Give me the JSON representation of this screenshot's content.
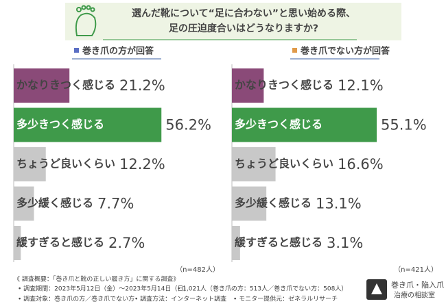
{
  "title_lines": [
    "選んだ靴について“足に合わない”と思い始める際、",
    "足の圧迫度合いはどうなりますか?"
  ],
  "chart_data": [
    {
      "type": "bar",
      "title": "巻き爪の方が回答",
      "marker_color": "#5b6fc4",
      "categories": [
        "かなりきつく感じる",
        "多少きつく感じる",
        "ちょうど良いくらい",
        "多少緩く感じる",
        "緩すぎると感じる"
      ],
      "values": [
        21.2,
        56.2,
        12.2,
        7.7,
        2.7
      ],
      "value_labels": [
        "21.2%",
        "56.2%",
        "12.2%",
        "7.7%",
        "2.7%"
      ],
      "colors": [
        "#8a4a78",
        "#3f9a4a",
        "#c8c8c8",
        "#c8c8c8",
        "#c8c8c8"
      ],
      "note": "（n=482人）"
    },
    {
      "type": "bar",
      "title": "巻き爪でない方が回答",
      "marker_color": "#e09a4a",
      "categories": [
        "かなりきつく感じる",
        "多少きつく感じる",
        "ちょうど良いくらい",
        "多少緩く感じる",
        "緩すぎると感じる"
      ],
      "values": [
        12.1,
        55.1,
        16.6,
        13.1,
        3.1
      ],
      "value_labels": [
        "12.1%",
        "55.1%",
        "16.6%",
        "13.1%",
        "3.1%"
      ],
      "colors": [
        "#8a4a78",
        "#3f9a4a",
        "#c8c8c8",
        "#c8c8c8",
        "#c8c8c8"
      ],
      "note": "（n=421人）"
    }
  ],
  "footer": {
    "heading": "《 調査概要：「巻き爪と靴の正しい履き方」に関する調査》",
    "items": [
      "• 調査期間：2023年5月12日（金）～2023年5月14日（日）",
      "• 1,021人（巻き爪の方：513人／巻き爪でない方：508人）",
      "• 調査対象：巻き爪の方／巻き爪でない方",
      "• 調査方法：インターネット調査",
      "• モニター提供元：ゼネラルリサーチ"
    ]
  },
  "logo": {
    "line1": "巻き爪・陥入爪",
    "line2": "治療の相談室"
  }
}
